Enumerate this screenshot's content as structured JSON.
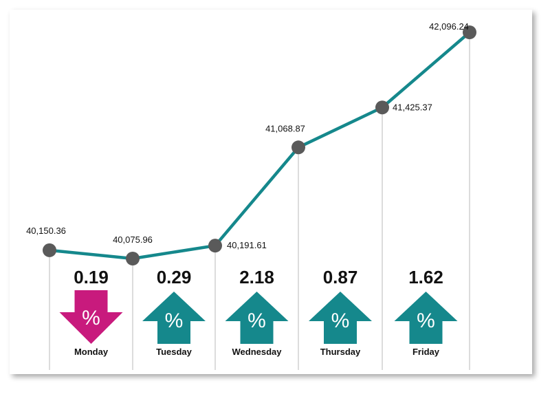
{
  "chart_data": {
    "type": "line",
    "categories": [
      "",
      "Monday",
      "Tuesday",
      "Wednesday",
      "Thursday",
      "Friday"
    ],
    "values": [
      40150.36,
      40075.96,
      40191.61,
      41068.87,
      41425.37,
      42096.24
    ],
    "value_labels": [
      "40,150.36",
      "40,075.96",
      "40,191.61",
      "41,068.87",
      "41,425.37",
      "42,096.24"
    ],
    "daily_change": [
      {
        "day": "Monday",
        "pct": "0.19",
        "direction": "down"
      },
      {
        "day": "Tuesday",
        "pct": "0.29",
        "direction": "up"
      },
      {
        "day": "Wednesday",
        "pct": "2.18",
        "direction": "up"
      },
      {
        "day": "Thursday",
        "pct": "0.87",
        "direction": "up"
      },
      {
        "day": "Friday",
        "pct": "1.62",
        "direction": "up"
      }
    ],
    "percent_symbol": "%",
    "ylim": [
      40075.96,
      42096.24
    ],
    "grid": false,
    "colors": {
      "line": "#15888c",
      "marker": "#5a5a5a",
      "up": "#15888c",
      "down": "#c81a7d"
    }
  }
}
